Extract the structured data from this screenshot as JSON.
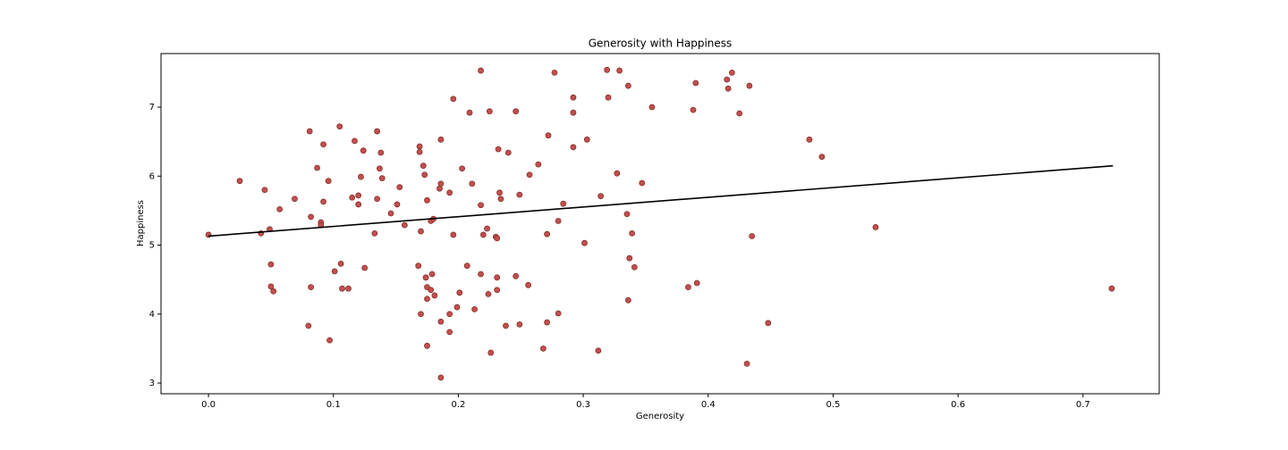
{
  "chart_data": {
    "type": "scatter",
    "title": "Generosity with Happiness",
    "x_label": "Generosity",
    "y_label": "Happiness",
    "xlim": [
      -0.038,
      0.761
    ],
    "ylim": [
      2.845,
      7.777
    ],
    "xticks": [
      {
        "value": 0,
        "label": "0.0"
      },
      0.1,
      0.2,
      0.3,
      0.4,
      0.5,
      0.6,
      0.7
    ],
    "yticks": [
      3,
      4,
      5,
      6,
      7
    ],
    "grid": false,
    "series": [
      {
        "color": "#c0504d",
        "x": [
          0.0,
          0.025,
          0.045,
          0.042,
          0.049,
          0.05,
          0.05,
          0.052,
          0.057,
          0.069,
          0.081,
          0.082,
          0.082,
          0.08,
          0.087,
          0.09,
          0.09,
          0.092,
          0.092,
          0.096,
          0.097,
          0.101,
          0.105,
          0.106,
          0.107,
          0.112,
          0.115,
          0.117,
          0.12,
          0.12,
          0.122,
          0.124,
          0.125,
          0.133,
          0.135,
          0.135,
          0.137,
          0.138,
          0.139,
          0.146,
          0.151,
          0.153,
          0.157,
          0.168,
          0.169,
          0.169,
          0.17,
          0.17,
          0.172,
          0.173,
          0.174,
          0.175,
          0.175,
          0.175,
          0.175,
          0.178,
          0.178,
          0.179,
          0.18,
          0.181,
          0.185,
          0.186,
          0.186,
          0.186,
          0.186,
          0.193,
          0.193,
          0.193,
          0.196,
          0.196,
          0.199,
          0.201,
          0.203,
          0.207,
          0.209,
          0.211,
          0.213,
          0.218,
          0.218,
          0.218,
          0.22,
          0.223,
          0.224,
          0.226,
          0.225,
          0.23,
          0.231,
          0.231,
          0.231,
          0.232,
          0.233,
          0.234,
          0.238,
          0.24,
          0.246,
          0.246,
          0.249,
          0.249,
          0.256,
          0.257,
          0.264,
          0.268,
          0.271,
          0.271,
          0.272,
          0.277,
          0.28,
          0.28,
          0.284,
          0.292,
          0.292,
          0.292,
          0.301,
          0.303,
          0.312,
          0.314,
          0.319,
          0.32,
          0.327,
          0.329,
          0.335,
          0.336,
          0.336,
          0.337,
          0.339,
          0.341,
          0.347,
          0.355,
          0.384,
          0.388,
          0.39,
          0.391,
          0.415,
          0.416,
          0.419,
          0.425,
          0.431,
          0.433,
          0.435,
          0.448,
          0.481,
          0.491,
          0.534,
          0.723
        ],
        "values": [
          5.15,
          5.93,
          5.8,
          5.17,
          5.23,
          4.72,
          4.4,
          4.33,
          5.52,
          5.67,
          6.65,
          5.41,
          4.39,
          3.83,
          6.12,
          5.33,
          5.29,
          6.46,
          5.63,
          5.93,
          3.62,
          4.62,
          6.72,
          4.73,
          4.37,
          4.37,
          5.69,
          6.51,
          5.72,
          5.59,
          5.99,
          6.37,
          4.67,
          5.17,
          6.65,
          5.67,
          6.11,
          6.34,
          5.97,
          5.46,
          5.59,
          5.84,
          5.29,
          4.7,
          6.43,
          6.35,
          5.2,
          4.0,
          6.15,
          6.02,
          4.53,
          4.39,
          5.65,
          4.22,
          3.54,
          4.35,
          5.35,
          4.58,
          5.38,
          4.27,
          5.82,
          5.89,
          6.53,
          3.89,
          3.08,
          4.0,
          3.74,
          5.76,
          5.15,
          7.12,
          4.1,
          4.31,
          6.11,
          4.7,
          6.92,
          5.89,
          4.07,
          7.53,
          5.58,
          4.58,
          5.15,
          5.24,
          4.29,
          3.44,
          6.94,
          5.12,
          5.1,
          4.53,
          4.35,
          6.39,
          5.76,
          5.67,
          3.83,
          6.34,
          4.55,
          6.94,
          5.73,
          3.85,
          4.42,
          6.02,
          6.17,
          3.5,
          5.16,
          3.88,
          6.59,
          7.5,
          4.01,
          5.35,
          5.6,
          6.42,
          6.92,
          7.14,
          5.03,
          6.53,
          3.47,
          5.71,
          7.54,
          7.14,
          6.04,
          7.53,
          5.45,
          4.2,
          7.31,
          4.81,
          5.17,
          4.68,
          5.9,
          7.0,
          4.39,
          6.96,
          7.35,
          4.45,
          7.4,
          7.27,
          7.5,
          6.91,
          3.28,
          7.31,
          5.13,
          3.87,
          6.53,
          6.28,
          5.26,
          4.37
        ]
      },
      {
        "type": "line",
        "color": "#000000",
        "x": [
          0.0,
          0.724
        ],
        "values": [
          5.13,
          6.15
        ]
      }
    ]
  }
}
